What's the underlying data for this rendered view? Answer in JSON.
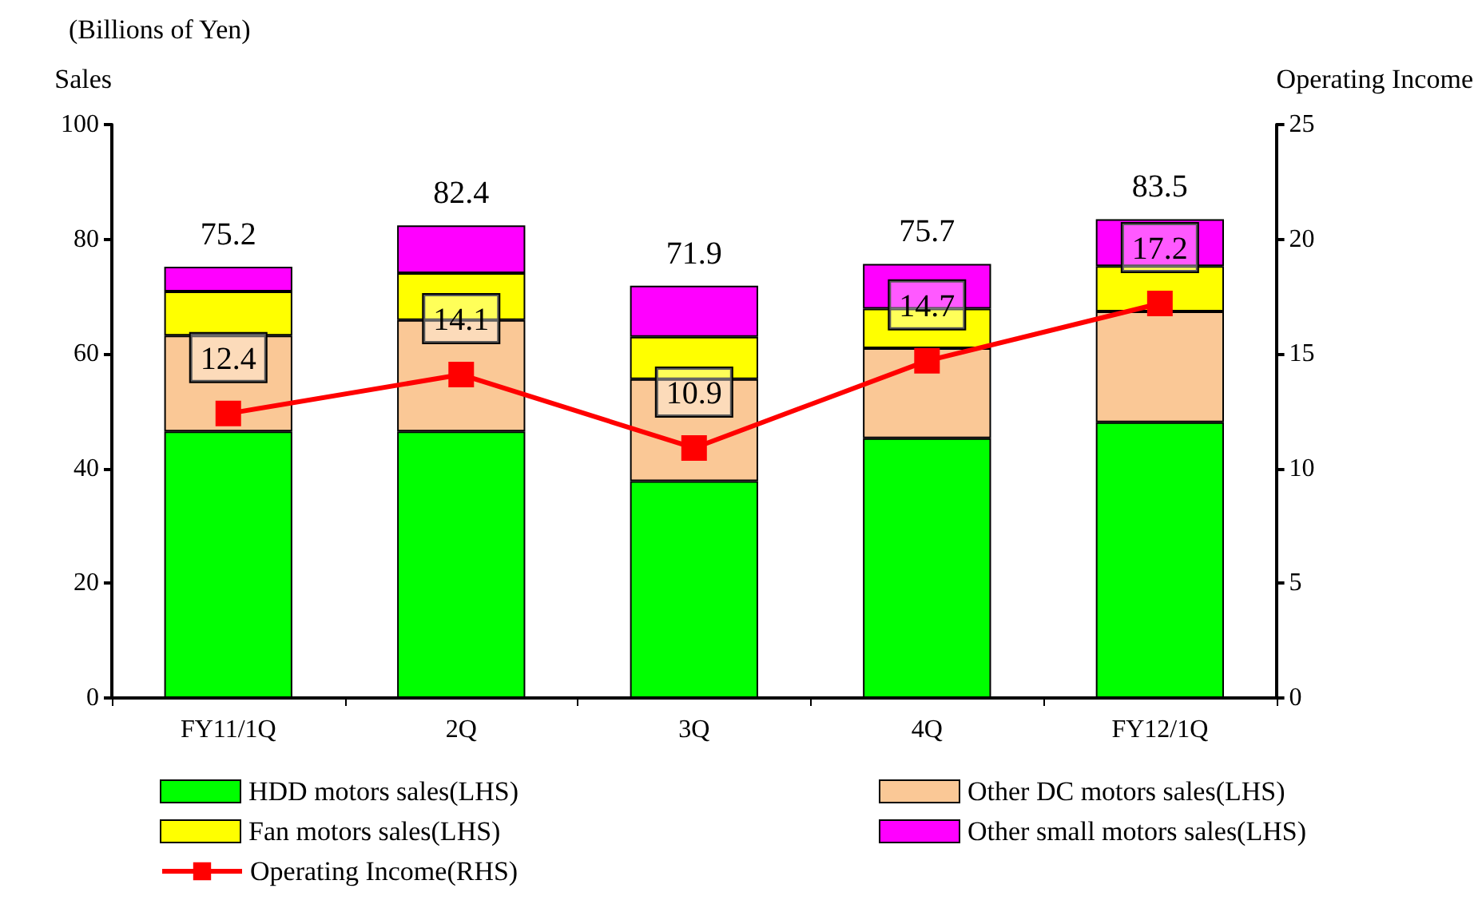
{
  "chart_data": {
    "type": "bar",
    "stacked": true,
    "title": "(Billions of Yen)",
    "ylabel": "Sales",
    "y2label": "Operating Income",
    "categories": [
      "FY11/1Q",
      "2Q",
      "3Q",
      "4Q",
      "FY12/1Q"
    ],
    "series": [
      {
        "name": "HDD motors sales(LHS)",
        "color": "#00ff00",
        "values": [
          46.5,
          46.5,
          37.8,
          45.3,
          48.1
        ]
      },
      {
        "name": "Other DC motors sales(LHS)",
        "color": "#fac896",
        "values": [
          16.7,
          19.4,
          17.8,
          15.7,
          19.3
        ]
      },
      {
        "name": "Fan motors sales(LHS)",
        "color": "#ffff00",
        "values": [
          7.7,
          8.2,
          7.4,
          6.9,
          7.9
        ]
      },
      {
        "name": "Other small motors sales(LHS)",
        "color": "#ff00ff",
        "values": [
          4.3,
          8.3,
          8.9,
          7.8,
          8.2
        ]
      },
      {
        "name": "Operating Income(RHS)",
        "type": "line",
        "axis": "y2",
        "color": "#ff0000",
        "marker": "square",
        "line_style": "solid",
        "values": [
          12.4,
          14.1,
          10.9,
          14.7,
          17.2
        ],
        "value_labels": [
          "12.4",
          "14.1",
          "10.9",
          "14.7",
          "17.2"
        ]
      }
    ],
    "totals": [
      "75.2",
      "82.4",
      "71.9",
      "75.7",
      "83.5"
    ],
    "ylim": [
      0,
      100
    ],
    "yticks": [
      0,
      20,
      40,
      60,
      80,
      100
    ],
    "y2lim": [
      0,
      25
    ],
    "y2ticks": [
      0,
      5,
      10,
      15,
      20,
      25
    ],
    "grid": false,
    "legend": "bottom"
  }
}
